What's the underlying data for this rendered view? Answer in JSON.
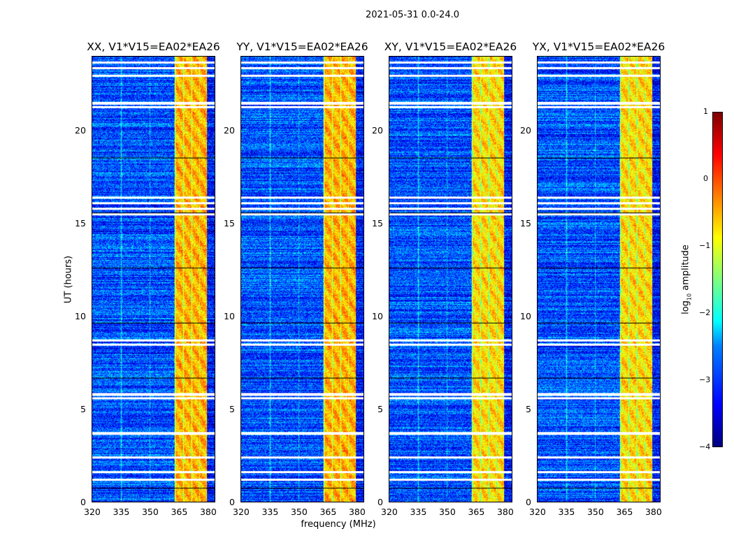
{
  "chart_data": {
    "type": "heatmap",
    "suptitle": "2021-05-31 0.0-24.0",
    "xlabel": "frequency (MHz)",
    "ylabel": "UT (hours)",
    "xlim": [
      320,
      384
    ],
    "ylim": [
      0,
      24
    ],
    "xticks": [
      "320",
      "335",
      "350",
      "365",
      "380"
    ],
    "yticks": [
      "0",
      "5",
      "10",
      "15",
      "20"
    ],
    "panels": [
      {
        "title": "XX, V1*V15=EA02*EA26"
      },
      {
        "title": "YY, V1*V15=EA02*EA26"
      },
      {
        "title": "XY, V1*V15=EA02*EA26"
      },
      {
        "title": "YX, V1*V15=EA02*EA26"
      }
    ],
    "colorbar": {
      "label_main": "log",
      "label_sub": "10",
      "label_rest": " amplitude",
      "colormap": "jet",
      "range": [
        -4,
        1
      ],
      "ticks": [
        "1",
        "0",
        "−1",
        "−2",
        "−3",
        "−4"
      ]
    },
    "background_level": -3,
    "bright_band_mhz": [
      363,
      380
    ],
    "bright_band_level": -0.5,
    "flagged_hours": [
      23.7,
      23.4,
      23.0,
      21.5,
      21.3,
      16.4,
      16.1,
      15.8,
      15.5,
      8.7,
      8.5,
      5.8,
      5.6,
      3.7,
      2.4,
      1.6,
      1.2
    ]
  }
}
